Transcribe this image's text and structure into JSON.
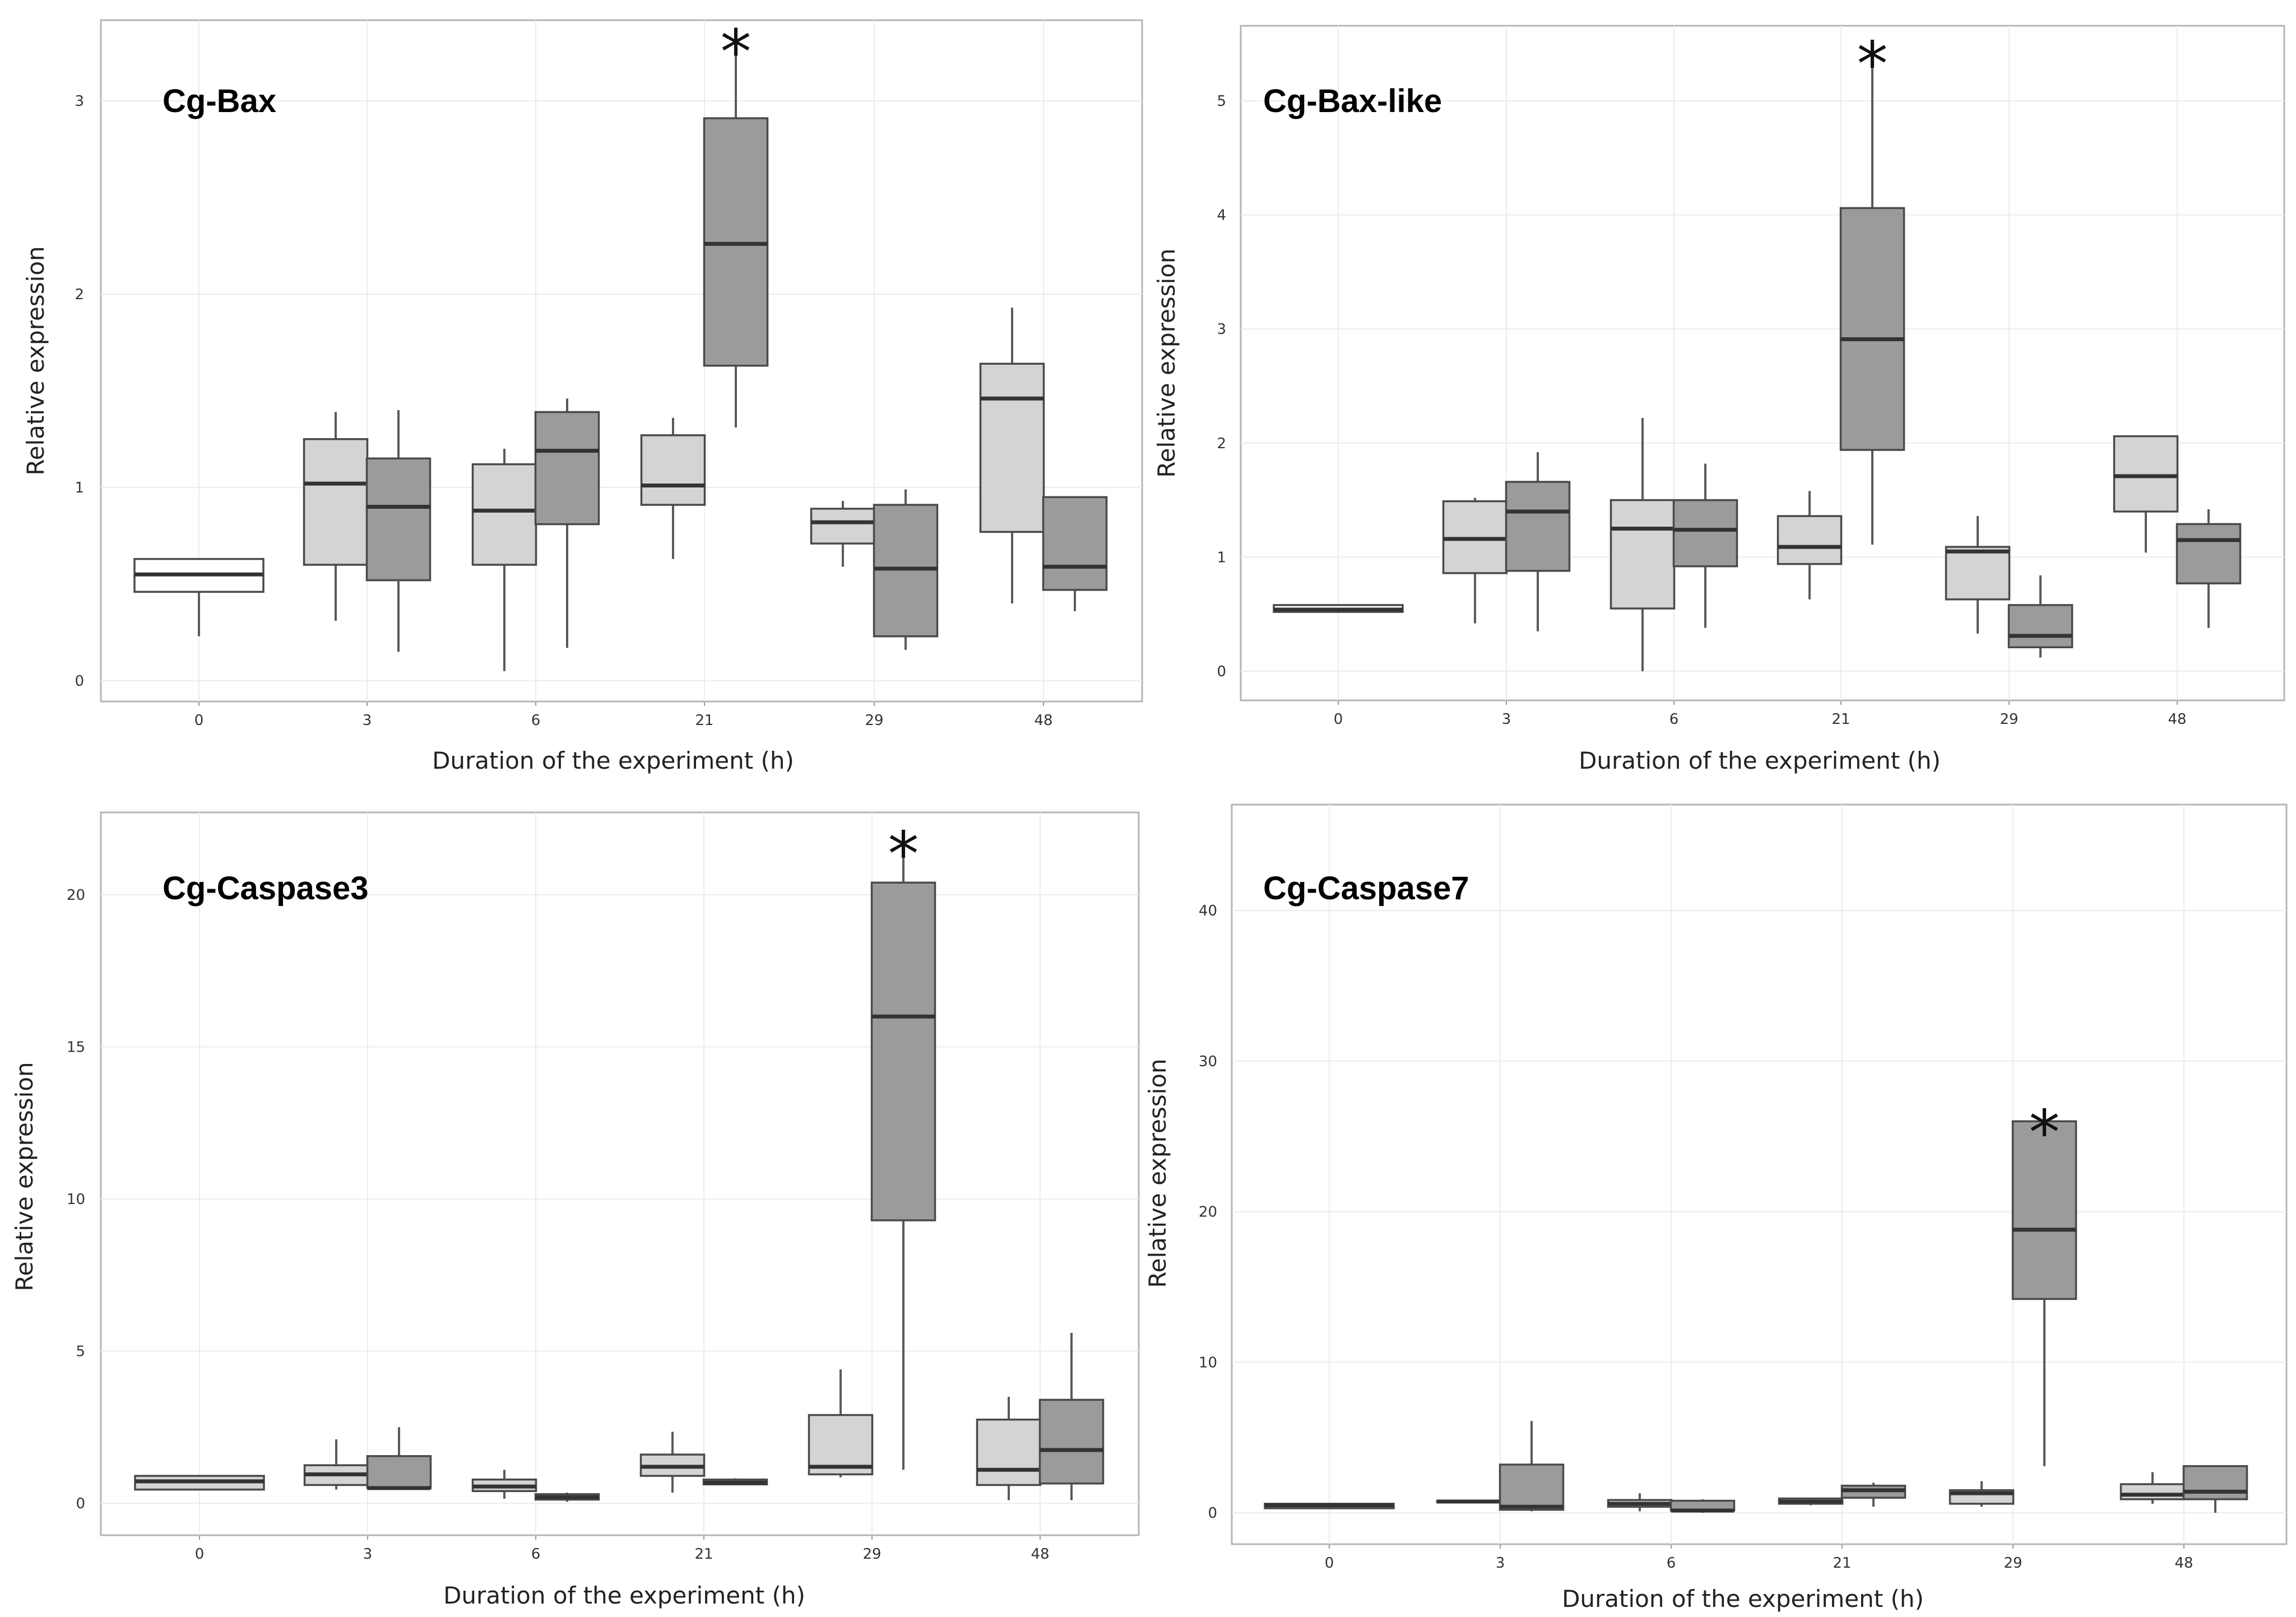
{
  "colors": {
    "ctrl_t0": "#ffffff",
    "control": "#d4d4d4",
    "treated": "#9b9b9b"
  },
  "chart_data": [
    {
      "type": "box",
      "title": "Cg-Bax",
      "xlabel": "Duration of the experiment (h)",
      "ylabel": "Relative expression",
      "categories": [
        "0",
        "3",
        "6",
        "21",
        "29",
        "48"
      ],
      "ylim": [
        -0.1,
        3.4
      ],
      "yticks": [
        0,
        1,
        2,
        3
      ],
      "ytick_labels": [
        "0",
        "1",
        "2",
        "3"
      ],
      "significance_marker": "*",
      "boxes": [
        {
          "cat": 0,
          "group": "t0",
          "whislo": 0.23,
          "q1": 0.46,
          "med": 0.55,
          "q3": 0.63,
          "whishi": 0.63
        },
        {
          "cat": 1,
          "group": "control",
          "whislo": 0.31,
          "q1": 0.6,
          "med": 1.02,
          "q3": 1.25,
          "whishi": 1.39
        },
        {
          "cat": 1,
          "group": "treated",
          "whislo": 0.15,
          "q1": 0.52,
          "med": 0.9,
          "q3": 1.15,
          "whishi": 1.4
        },
        {
          "cat": 2,
          "group": "control",
          "whislo": 0.05,
          "q1": 0.6,
          "med": 0.88,
          "q3": 1.12,
          "whishi": 1.2
        },
        {
          "cat": 2,
          "group": "treated",
          "whislo": 0.17,
          "q1": 0.81,
          "med": 1.19,
          "q3": 1.39,
          "whishi": 1.46
        },
        {
          "cat": 3,
          "group": "control",
          "whislo": 0.63,
          "q1": 0.91,
          "med": 1.01,
          "q3": 1.27,
          "whishi": 1.36
        },
        {
          "cat": 3,
          "group": "treated",
          "whislo": 1.31,
          "q1": 1.63,
          "med": 2.26,
          "q3": 2.91,
          "whishi": 3.31,
          "star": true
        },
        {
          "cat": 4,
          "group": "control",
          "whislo": 0.59,
          "q1": 0.71,
          "med": 0.82,
          "q3": 0.89,
          "whishi": 0.93
        },
        {
          "cat": 4,
          "group": "treated",
          "whislo": 0.16,
          "q1": 0.23,
          "med": 0.58,
          "q3": 0.91,
          "whishi": 0.99
        },
        {
          "cat": 5,
          "group": "control",
          "whislo": 0.4,
          "q1": 0.77,
          "med": 1.46,
          "q3": 1.64,
          "whishi": 1.93
        },
        {
          "cat": 5,
          "group": "treated",
          "whislo": 0.36,
          "q1": 0.47,
          "med": 0.59,
          "q3": 0.95,
          "whishi": 0.95
        }
      ]
    },
    {
      "type": "box",
      "title": "Cg-Bax-like",
      "xlabel": "Duration of the experiment (h)",
      "ylabel": "Relative expression",
      "categories": [
        "0",
        "3",
        "6",
        "21",
        "29",
        "48"
      ],
      "ylim": [
        -0.25,
        5.7
      ],
      "yticks": [
        0,
        1,
        2,
        3,
        4,
        5
      ],
      "ytick_labels": [
        "0",
        "1",
        "2",
        "3",
        "4",
        "5"
      ],
      "significance_marker": "*",
      "boxes": [
        {
          "cat": 0,
          "group": "t0",
          "whislo": 0.52,
          "q1": 0.52,
          "med": 0.54,
          "q3": 0.58,
          "whishi": 0.58
        },
        {
          "cat": 1,
          "group": "control",
          "whislo": 0.42,
          "q1": 0.86,
          "med": 1.16,
          "q3": 1.49,
          "whishi": 1.52
        },
        {
          "cat": 1,
          "group": "treated",
          "whislo": 0.35,
          "q1": 0.88,
          "med": 1.4,
          "q3": 1.66,
          "whishi": 1.92
        },
        {
          "cat": 2,
          "group": "control",
          "whislo": 0.0,
          "q1": 0.55,
          "med": 1.25,
          "q3": 1.5,
          "whishi": 2.22
        },
        {
          "cat": 2,
          "group": "treated",
          "whislo": 0.38,
          "q1": 0.92,
          "med": 1.24,
          "q3": 1.5,
          "whishi": 1.82
        },
        {
          "cat": 3,
          "group": "control",
          "whislo": 0.63,
          "q1": 0.94,
          "med": 1.09,
          "q3": 1.36,
          "whishi": 1.58
        },
        {
          "cat": 3,
          "group": "treated",
          "whislo": 1.11,
          "q1": 1.94,
          "med": 2.91,
          "q3": 4.06,
          "whishi": 5.42,
          "star": true
        },
        {
          "cat": 4,
          "group": "control",
          "whislo": 0.33,
          "q1": 0.63,
          "med": 1.05,
          "q3": 1.09,
          "whishi": 1.36
        },
        {
          "cat": 4,
          "group": "treated",
          "whislo": 0.12,
          "q1": 0.21,
          "med": 0.31,
          "q3": 0.58,
          "whishi": 0.84
        },
        {
          "cat": 5,
          "group": "control",
          "whislo": 1.04,
          "q1": 1.4,
          "med": 1.71,
          "q3": 2.06,
          "whishi": 2.06
        },
        {
          "cat": 5,
          "group": "treated",
          "whislo": 0.38,
          "q1": 0.77,
          "med": 1.15,
          "q3": 1.29,
          "whishi": 1.42
        }
      ]
    },
    {
      "type": "box",
      "title": "Cg-Caspase3",
      "xlabel": "Duration of the experiment (h)",
      "ylabel": "Relative expression",
      "categories": [
        "0",
        "3",
        "6",
        "21",
        "29",
        "48"
      ],
      "ylim": [
        -1.1,
        22.5
      ],
      "yticks": [
        0,
        5,
        10,
        15,
        20
      ],
      "ytick_labels": [
        "0",
        "5",
        "10",
        "15",
        "20"
      ],
      "significance_marker": "*",
      "boxes": [
        {
          "cat": 0,
          "group": "control",
          "whislo": 0.45,
          "q1": 0.45,
          "med": 0.72,
          "q3": 0.9,
          "whishi": 0.9
        },
        {
          "cat": 1,
          "group": "control",
          "whislo": 0.45,
          "q1": 0.6,
          "med": 0.95,
          "q3": 1.25,
          "whishi": 2.1
        },
        {
          "cat": 1,
          "group": "treated",
          "whislo": 0.45,
          "q1": 0.5,
          "med": 0.5,
          "q3": 1.55,
          "whishi": 2.5
        },
        {
          "cat": 2,
          "group": "control",
          "whislo": 0.15,
          "q1": 0.4,
          "med": 0.55,
          "q3": 0.78,
          "whishi": 1.1
        },
        {
          "cat": 2,
          "group": "treated",
          "whislo": 0.05,
          "q1": 0.12,
          "med": 0.2,
          "q3": 0.3,
          "whishi": 0.35
        },
        {
          "cat": 3,
          "group": "control",
          "whislo": 0.35,
          "q1": 0.9,
          "med": 1.2,
          "q3": 1.6,
          "whishi": 2.35
        },
        {
          "cat": 3,
          "group": "treated",
          "whislo": 0.6,
          "q1": 0.62,
          "med": 0.68,
          "q3": 0.78,
          "whishi": 0.82
        },
        {
          "cat": 4,
          "group": "control",
          "whislo": 0.85,
          "q1": 0.95,
          "med": 1.2,
          "q3": 2.9,
          "whishi": 4.4
        },
        {
          "cat": 4,
          "group": "treated",
          "whislo": 1.1,
          "q1": 9.3,
          "med": 16.0,
          "q3": 20.4,
          "whishi": 21.7,
          "star": true
        },
        {
          "cat": 5,
          "group": "control",
          "whislo": 0.1,
          "q1": 0.6,
          "med": 1.1,
          "q3": 2.75,
          "whishi": 3.5
        },
        {
          "cat": 5,
          "group": "treated",
          "whislo": 0.1,
          "q1": 0.65,
          "med": 1.75,
          "q3": 3.4,
          "whishi": 5.6
        }
      ]
    },
    {
      "type": "box",
      "title": "Cg-Caspase7",
      "xlabel": "Duration of the experiment (h)",
      "ylabel": "Relative expression",
      "categories": [
        "0",
        "3",
        "6",
        "21",
        "29",
        "48"
      ],
      "ylim": [
        -2.2,
        46
      ],
      "yticks": [
        0,
        10,
        20,
        30,
        40
      ],
      "ytick_labels": [
        "0",
        "10",
        "20",
        "30",
        "40"
      ],
      "significance_marker": "*",
      "boxes": [
        {
          "cat": 0,
          "group": "control",
          "whislo": 0.3,
          "q1": 0.3,
          "med": 0.5,
          "q3": 0.6,
          "whishi": 0.6
        },
        {
          "cat": 1,
          "group": "control",
          "whislo": 0.7,
          "q1": 0.7,
          "med": 0.75,
          "q3": 0.8,
          "whishi": 0.8
        },
        {
          "cat": 1,
          "group": "treated",
          "whislo": 0.1,
          "q1": 0.2,
          "med": 0.4,
          "q3": 3.2,
          "whishi": 6.1
        },
        {
          "cat": 2,
          "group": "control",
          "whislo": 0.1,
          "q1": 0.4,
          "med": 0.6,
          "q3": 0.85,
          "whishi": 1.3
        },
        {
          "cat": 2,
          "group": "treated",
          "whislo": 0.0,
          "q1": 0.15,
          "med": 0.15,
          "q3": 0.8,
          "whishi": 0.9
        },
        {
          "cat": 3,
          "group": "control",
          "whislo": 0.5,
          "q1": 0.6,
          "med": 0.75,
          "q3": 0.95,
          "whishi": 0.95
        },
        {
          "cat": 3,
          "group": "treated",
          "whislo": 0.4,
          "q1": 1.0,
          "med": 1.5,
          "q3": 1.8,
          "whishi": 2.0
        },
        {
          "cat": 4,
          "group": "control",
          "whislo": 0.4,
          "q1": 0.6,
          "med": 1.3,
          "q3": 1.5,
          "whishi": 2.1
        },
        {
          "cat": 4,
          "group": "treated",
          "whislo": 3.1,
          "q1": 14.2,
          "med": 18.8,
          "q3": 26.0,
          "whishi": 26.0,
          "star": true
        },
        {
          "cat": 5,
          "group": "control",
          "whislo": 0.6,
          "q1": 0.9,
          "med": 1.2,
          "q3": 1.9,
          "whishi": 2.7
        },
        {
          "cat": 5,
          "group": "treated",
          "whislo": 0.0,
          "q1": 0.9,
          "med": 1.4,
          "q3": 3.1,
          "whishi": 3.1
        }
      ]
    }
  ]
}
